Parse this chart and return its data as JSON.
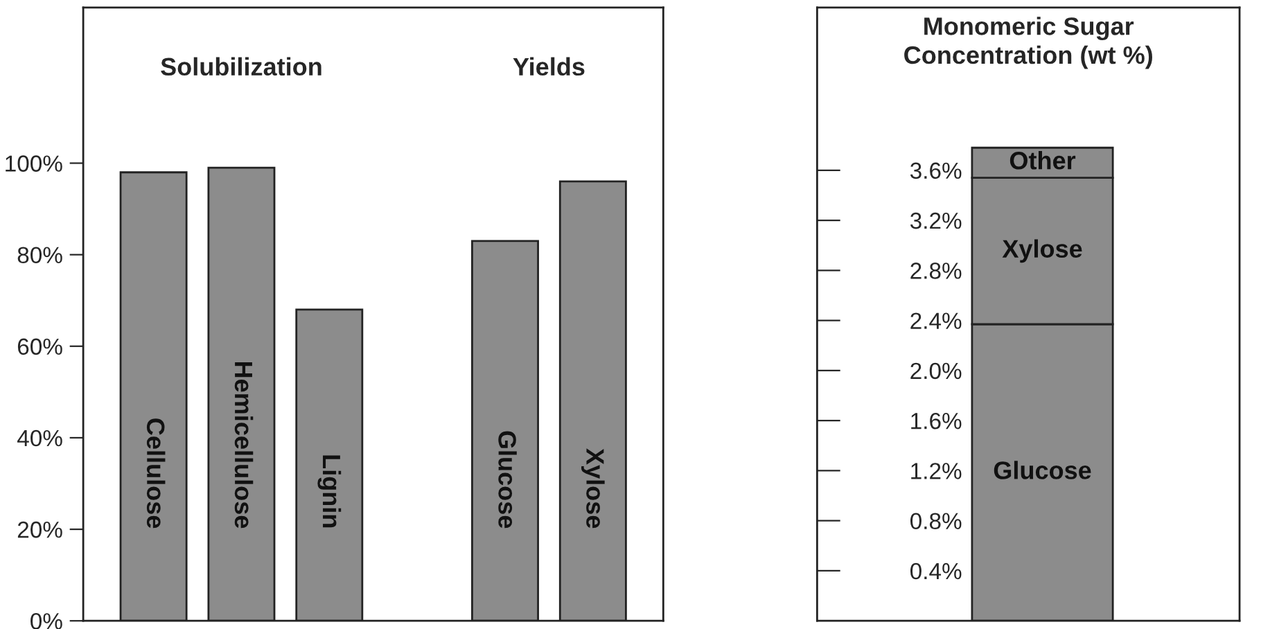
{
  "chart_data": [
    {
      "type": "bar",
      "annotations": [
        "Solubilization",
        "Yields"
      ],
      "categories": [
        "Cellulose",
        "Hemicellulose",
        "Lignin",
        null,
        "Glucose",
        "Xylose"
      ],
      "values": [
        98,
        99,
        68,
        null,
        83,
        96
      ],
      "color": "#8c8c8c",
      "ylim": [
        0,
        134
      ],
      "yticks": [
        {
          "value": 0,
          "label": "0%"
        },
        {
          "value": 20,
          "label": "20%"
        },
        {
          "value": 40,
          "label": "40%"
        },
        {
          "value": 60,
          "label": "60%"
        },
        {
          "value": 80,
          "label": "80%"
        },
        {
          "value": 100,
          "label": "100%"
        }
      ],
      "grid": false,
      "legend": false
    },
    {
      "type": "bar",
      "title": "Monomeric Sugar\nConcentration (wt %)",
      "stacked": true,
      "categories": [
        null
      ],
      "series": [
        {
          "name": "Glucose",
          "color": "#8c8c8c",
          "values": [
            2.37
          ]
        },
        {
          "name": "Xylose",
          "color": "#8c8c8c",
          "values": [
            1.17
          ]
        },
        {
          "name": "Other",
          "color": "#8c8c8c",
          "values": [
            0.24
          ]
        }
      ],
      "ylim": [
        0,
        4.9
      ],
      "yticks": [
        {
          "value": 0.4,
          "label": "0.4%"
        },
        {
          "value": 0.8,
          "label": "0.8%"
        },
        {
          "value": 1.2,
          "label": "1.2%"
        },
        {
          "value": 1.6,
          "label": "1.6%"
        },
        {
          "value": 2.0,
          "label": "2.0%"
        },
        {
          "value": 2.4,
          "label": "2.4%"
        },
        {
          "value": 2.8,
          "label": "2.8%"
        },
        {
          "value": 3.2,
          "label": "3.2%"
        },
        {
          "value": 3.6,
          "label": "3.6%"
        }
      ],
      "grid": false,
      "legend": false
    }
  ]
}
